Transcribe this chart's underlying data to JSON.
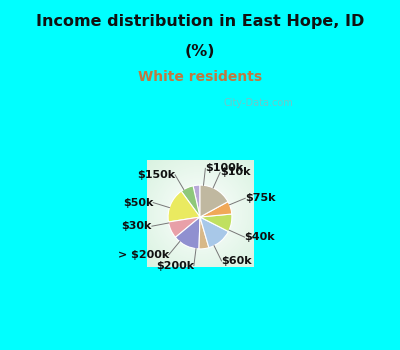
{
  "title_line1": "Income distribution in East Hope, ID",
  "title_line2": "(%)",
  "subtitle": "White residents",
  "title_color": "#111111",
  "subtitle_color": "#c07840",
  "bg_color_top": "#00ffff",
  "watermark": "City-Data.com",
  "labels": [
    "$100k",
    "$10k",
    "$75k",
    "$40k",
    "$60k",
    "$200k",
    "> $200k",
    "$30k",
    "$50k",
    "$150k"
  ],
  "sizes": [
    3.5,
    6.5,
    17.5,
    8.5,
    13.5,
    5.0,
    13.0,
    9.0,
    6.5,
    17.0
  ],
  "colors": [
    "#b8a8d8",
    "#8ec87a",
    "#eaea60",
    "#e8a0a8",
    "#9090d0",
    "#d8b888",
    "#a8c8e8",
    "#c0e060",
    "#f0a858",
    "#c0b8a0"
  ],
  "label_fontsize": 8,
  "label_color": "#111111",
  "startangle": 90,
  "label_radii": [
    0.72,
    0.72,
    0.72,
    0.72,
    0.72,
    0.72,
    0.72,
    0.72,
    0.72,
    0.72
  ]
}
